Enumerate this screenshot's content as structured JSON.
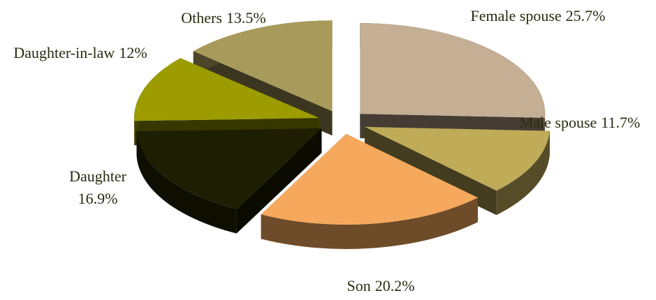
{
  "chart_data": {
    "type": "pie",
    "categories": [
      "Female spouse",
      "Male spouse",
      "Son",
      "Daughter",
      "Daughter-in-law",
      "Others"
    ],
    "values": [
      25.7,
      11.7,
      20.2,
      16.9,
      12,
      13.5
    ],
    "value_labels": [
      "25.7%",
      "11.7%",
      "20.2%",
      "16.9%",
      "12%",
      "13.5%"
    ],
    "colors": [
      "#c4ae94",
      "#bfab58",
      "#f6a95c",
      "#1e1e02",
      "#9c9c00",
      "#a89a5a"
    ],
    "exploded": true,
    "three_d": true
  }
}
